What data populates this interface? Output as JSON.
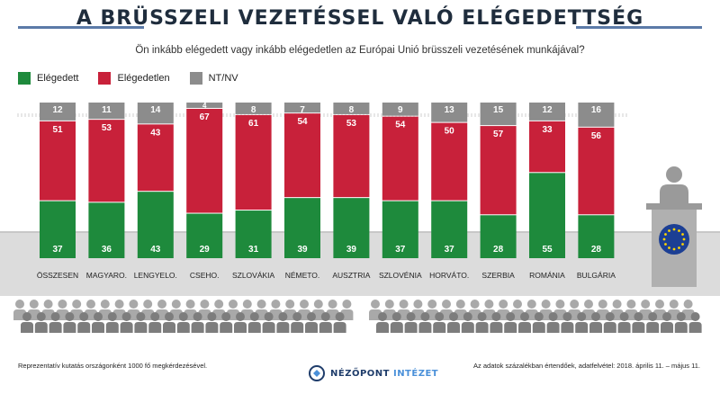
{
  "header": {
    "title": "A BRÜSSZELI VEZETÉSSEL VALÓ ELÉGEDETTSÉG",
    "subtitle": "Ön inkább elégedett vagy inkább elégedetlen az Európai Unió brüsszeli vezetésének munkájával?"
  },
  "legend": [
    {
      "label": "Elégedett",
      "color": "#1e8a3c"
    },
    {
      "label": "Elégedetlen",
      "color": "#c8213a"
    },
    {
      "label": "NT/NV",
      "color": "#8c8c8c"
    }
  ],
  "chart_data": {
    "type": "bar",
    "stacked": true,
    "categories": [
      "ÖSSZESEN",
      "MAGYARO.",
      "LENGYELO.",
      "CSEHO.",
      "SZLOVÁKIA",
      "NÉMETO.",
      "AUSZTRIA",
      "SZLOVÉNIA",
      "HORVÁTO.",
      "SZERBIA",
      "ROMÁNIA",
      "BULGÁRIA"
    ],
    "series": [
      {
        "name": "Elégedett",
        "color": "#1e8a3c",
        "values": [
          37,
          36,
          43,
          29,
          31,
          39,
          39,
          37,
          37,
          28,
          55,
          28
        ]
      },
      {
        "name": "Elégedetlen",
        "color": "#c8213a",
        "values": [
          51,
          53,
          43,
          67,
          61,
          54,
          53,
          54,
          50,
          57,
          33,
          56
        ]
      },
      {
        "name": "NT/NV",
        "color": "#8c8c8c",
        "values": [
          12,
          11,
          14,
          4,
          8,
          7,
          8,
          9,
          13,
          15,
          12,
          16
        ]
      }
    ],
    "ylim": [
      0,
      100
    ]
  },
  "footer": {
    "left": "Reprezentatív kutatás országonként 1000 fő megkérdezésével.",
    "right": "Az adatok százalékban értendőek, adatfelvétel: 2018. április 11. – május 11.",
    "logo_main": "NÉZŐPONT",
    "logo_accent": "INTÉZET"
  },
  "decor": {
    "podium_icon": "podium-speaker-icon",
    "audience_icon": "audience-silhouettes-icon",
    "eu_flag_icon": "eu-flag-icon"
  }
}
